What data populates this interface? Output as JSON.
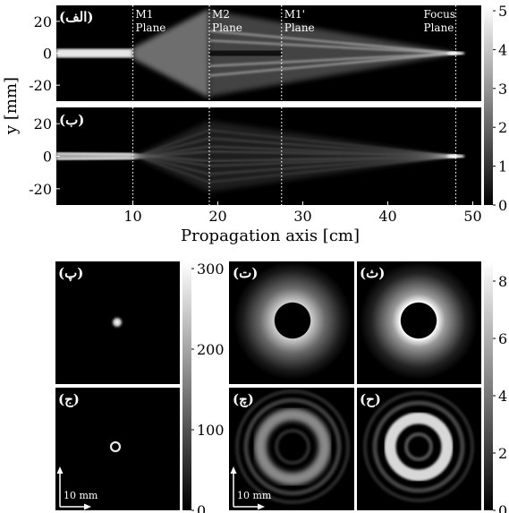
{
  "chart_data": [
    {
      "type": "heatmap",
      "panel": "propagation",
      "xlabel": "Propagation axis [cm]",
      "ylabel": "y [mm]",
      "xlim": [
        1,
        51
      ],
      "ylim": [
        -30,
        30
      ],
      "x_ticks": [
        10,
        20,
        30,
        40,
        50
      ],
      "y_ticks": [
        20,
        0,
        -20
      ],
      "colorbar_ticks": [
        "0",
        "1",
        "2",
        "3",
        "4",
        "5"
      ],
      "planes": [
        {
          "x": 10,
          "label_top": "M1",
          "label_bottom": "Plane"
        },
        {
          "x": 19,
          "label_top": "M2",
          "label_bottom": "Plane"
        },
        {
          "x": 27.5,
          "label_top": "M1'",
          "label_bottom": "Plane"
        },
        {
          "x": 48,
          "label_top": "Focus",
          "label_bottom": "Plane"
        }
      ],
      "subplots": [
        {
          "label": "(الف)"
        },
        {
          "label": "(ب)"
        }
      ],
      "colormap": "grayscale"
    },
    {
      "type": "heatmap",
      "panel": "transverse-left",
      "subplots": [
        {
          "label": "(پ)",
          "pattern": "spot"
        },
        {
          "label": "(ج)",
          "pattern": "small-ring"
        }
      ],
      "colorbar_ticks": [
        "300",
        "200",
        "100",
        "0"
      ],
      "scale_bar": "10 mm",
      "colormap": "grayscale"
    },
    {
      "type": "heatmap",
      "panel": "transverse-right",
      "subplots": [
        {
          "label": "(ت)",
          "pattern": "dark-disk-halo"
        },
        {
          "label": "(ث)",
          "pattern": "dark-disk-halo"
        },
        {
          "label": "(چ)",
          "pattern": "ring"
        },
        {
          "label": "(ح)",
          "pattern": "ring"
        }
      ],
      "colorbar_ticks": [
        "8",
        "6",
        "4",
        "2",
        "0"
      ],
      "scale_bar": "10 mm",
      "colormap": "grayscale"
    }
  ]
}
